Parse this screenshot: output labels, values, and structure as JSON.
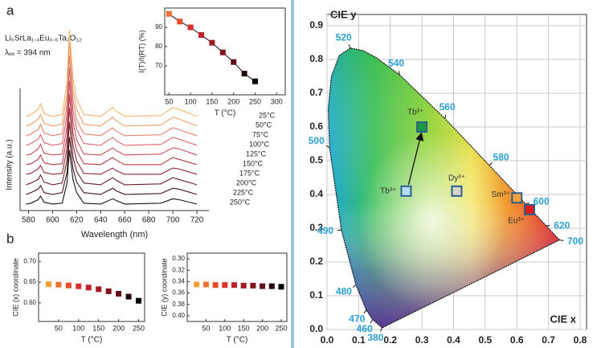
{
  "chart_data": [
    {
      "type": "spectra",
      "panel": "a",
      "annotations": [
        "Li₆SrLa₁.₄Eu₀.₆Ta₂O₁₂",
        "λₑₓ = 394 nm"
      ],
      "x_label": "Wavelength (nm)",
      "y_label": "Intensity (a.u.)",
      "xlim": [
        573,
        730
      ],
      "xticks": [
        580,
        600,
        620,
        640,
        660,
        680,
        700,
        720
      ],
      "x": [
        578,
        582,
        588,
        590,
        593,
        600,
        608,
        612,
        614,
        617,
        620,
        626,
        640,
        650,
        653,
        660,
        690,
        700,
        705,
        720
      ],
      "series": [
        {
          "name": "25°C",
          "color": "#f2b36b",
          "values": [
            2,
            4,
            10,
            16,
            5,
            2,
            4,
            40,
            100,
            45,
            22,
            4,
            2,
            12,
            8,
            2,
            3,
            12,
            10,
            2
          ]
        },
        {
          "name": "50°C",
          "color": "#ec9c6b",
          "values": [
            2,
            4,
            10,
            15,
            5,
            2,
            4,
            38,
            96,
            43,
            21,
            4,
            2,
            12,
            8,
            2,
            3,
            12,
            10,
            2
          ]
        },
        {
          "name": "75°C",
          "color": "#e4826b",
          "values": [
            2,
            4,
            9,
            15,
            5,
            2,
            4,
            37,
            93,
            42,
            20,
            4,
            2,
            11,
            7,
            2,
            3,
            11,
            9,
            2
          ]
        },
        {
          "name": "100°C",
          "color": "#d9666c",
          "values": [
            2,
            4,
            9,
            14,
            5,
            2,
            4,
            36,
            90,
            41,
            20,
            4,
            2,
            11,
            7,
            2,
            3,
            11,
            9,
            2
          ]
        },
        {
          "name": "125°C",
          "color": "#c94e58",
          "values": [
            2,
            3,
            9,
            14,
            4,
            2,
            3,
            34,
            86,
            39,
            19,
            3,
            2,
            10,
            7,
            2,
            3,
            10,
            9,
            2
          ]
        },
        {
          "name": "150°C",
          "color": "#b23c48",
          "values": [
            2,
            3,
            8,
            13,
            4,
            2,
            3,
            33,
            82,
            37,
            18,
            3,
            2,
            10,
            7,
            2,
            2,
            10,
            8,
            2
          ]
        },
        {
          "name": "175°C",
          "color": "#8e2c38",
          "values": [
            2,
            3,
            8,
            12,
            4,
            2,
            3,
            31,
            77,
            35,
            17,
            3,
            2,
            9,
            6,
            2,
            2,
            9,
            8,
            2
          ]
        },
        {
          "name": "200°C",
          "color": "#6a2028",
          "values": [
            1,
            3,
            7,
            12,
            4,
            1,
            3,
            29,
            72,
            32,
            16,
            3,
            1,
            9,
            6,
            1,
            2,
            9,
            7,
            1
          ]
        },
        {
          "name": "225°C",
          "color": "#44161a",
          "values": [
            1,
            3,
            7,
            11,
            3,
            1,
            3,
            26,
            66,
            30,
            15,
            3,
            1,
            8,
            5,
            1,
            2,
            8,
            7,
            1
          ]
        },
        {
          "name": "250°C",
          "color": "#151515",
          "values": [
            1,
            2,
            6,
            10,
            3,
            1,
            2,
            25,
            62,
            28,
            14,
            2,
            1,
            7,
            5,
            1,
            2,
            7,
            6,
            1
          ]
        }
      ]
    },
    {
      "type": "scatter",
      "x_label": "T (°C)",
      "y_label": "I(T)/I(RT) (%)",
      "fit_line": true,
      "x": [
        50,
        75,
        100,
        125,
        150,
        175,
        200,
        225,
        250
      ],
      "values": [
        97,
        93,
        90,
        86,
        82,
        77,
        72,
        66,
        62
      ],
      "colors": [
        "#f07030",
        "#e84a2a",
        "#d8302a",
        "#c02028",
        "#a01822",
        "#80141c",
        "#601016",
        "#200808",
        "#000000"
      ],
      "xlim": [
        40,
        320
      ],
      "xticks": [
        50,
        100,
        150,
        200,
        250,
        300
      ],
      "ylim": [
        55,
        100
      ],
      "yticks": [
        70,
        80,
        90
      ]
    },
    {
      "type": "scatter",
      "panel": "b",
      "x_label": "T (°C)",
      "y_label": "CIE (x) coordinate",
      "x": [
        25,
        50,
        75,
        100,
        125,
        150,
        175,
        200,
        225,
        250
      ],
      "values": [
        0.645,
        0.644,
        0.642,
        0.64,
        0.637,
        0.633,
        0.628,
        0.622,
        0.615,
        0.605
      ],
      "colors": [
        "#f5a030",
        "#f07030",
        "#e84a2a",
        "#d8302a",
        "#c02028",
        "#a01822",
        "#80141c",
        "#601016",
        "#200808",
        "#000000"
      ],
      "xlim": [
        0,
        265
      ],
      "xticks": [
        50,
        100,
        150,
        200,
        250
      ],
      "ylim": [
        0.555,
        0.72
      ],
      "yticks": [
        {
          "value": 0.6,
          "label": "0.60"
        },
        {
          "value": 0.65,
          "label": "0.65"
        },
        {
          "value": 0.7,
          "label": "0.70"
        }
      ]
    },
    {
      "type": "scatter",
      "x_label": "T (°C)",
      "y_label": "CIE (y) coordinate",
      "x": [
        25,
        50,
        75,
        100,
        125,
        150,
        175,
        200,
        225,
        250
      ],
      "values": [
        0.345,
        0.345,
        0.346,
        0.346,
        0.346,
        0.347,
        0.347,
        0.348,
        0.348,
        0.349
      ],
      "colors": [
        "#f5a030",
        "#f07030",
        "#e84a2a",
        "#d8302a",
        "#c02028",
        "#a01822",
        "#80141c",
        "#601016",
        "#200808",
        "#000000"
      ],
      "xlim": [
        0,
        265
      ],
      "xticks": [
        50,
        100,
        150,
        200,
        250
      ],
      "ylim": [
        0.41,
        0.29
      ],
      "yticks": [
        {
          "value": 0.3,
          "label": "0.30"
        },
        {
          "value": 0.32,
          "label": "0.32"
        },
        {
          "value": 0.34,
          "label": "0.34"
        },
        {
          "value": 0.36,
          "label": "0.36"
        },
        {
          "value": 0.38,
          "label": "0.38"
        },
        {
          "value": 0.4,
          "label": "0.40"
        }
      ]
    },
    {
      "type": "cie",
      "x_label": "CIE x",
      "y_label": "CIE y",
      "grid": true,
      "xlim": [
        0,
        0.8
      ],
      "xticks": [
        {
          "value": 0,
          "label": "0.0"
        },
        0.1,
        0.2,
        0.3,
        0.4,
        0.5,
        0.6,
        0.7,
        0.8
      ],
      "ylim": [
        0,
        0.9
      ],
      "yticks": [
        {
          "value": 0,
          "label": "0.0"
        },
        0.1,
        0.2,
        0.3,
        0.4,
        0.5,
        0.6,
        0.7,
        0.8,
        0.9
      ],
      "locus": {
        "labels": [
          "380",
          "460",
          "470",
          "480",
          "490",
          "500",
          null,
          null,
          null,
          "520",
          null,
          null,
          "540",
          "560",
          "580",
          "600",
          "620",
          "700"
        ],
        "x": [
          0.1741,
          0.144,
          0.1241,
          0.0913,
          0.0454,
          0.0082,
          0.0039,
          0.0139,
          0.0389,
          0.0743,
          0.1142,
          0.1547,
          0.2296,
          0.3731,
          0.5125,
          0.627,
          0.6915,
          0.7347
        ],
        "y": [
          0.005,
          0.0297,
          0.0578,
          0.1327,
          0.295,
          0.5384,
          0.6548,
          0.7502,
          0.812,
          0.8338,
          0.8262,
          0.8059,
          0.7543,
          0.6245,
          0.4866,
          0.3725,
          0.3083,
          0.2653
        ]
      },
      "series": [
        {
          "name": "Tb³⁺",
          "color": "#b5def3",
          "x": [
            0.25
          ],
          "values": [
            0.41
          ]
        },
        {
          "name": "Tb³⁺",
          "color": "#1f9a3a",
          "x": [
            0.3
          ],
          "values": [
            0.6
          ]
        },
        {
          "name": "Dy³⁺",
          "color": "#d8d2c8",
          "x": [
            0.41
          ],
          "values": [
            0.41
          ]
        },
        {
          "name": "Sm³⁺",
          "color": "#f2a03a",
          "x": [
            0.6
          ],
          "values": [
            0.39
          ]
        },
        {
          "name": "Eu³⁺",
          "color": "#e01c1c",
          "x": [
            0.64
          ],
          "values": [
            0.355
          ]
        }
      ]
    }
  ]
}
